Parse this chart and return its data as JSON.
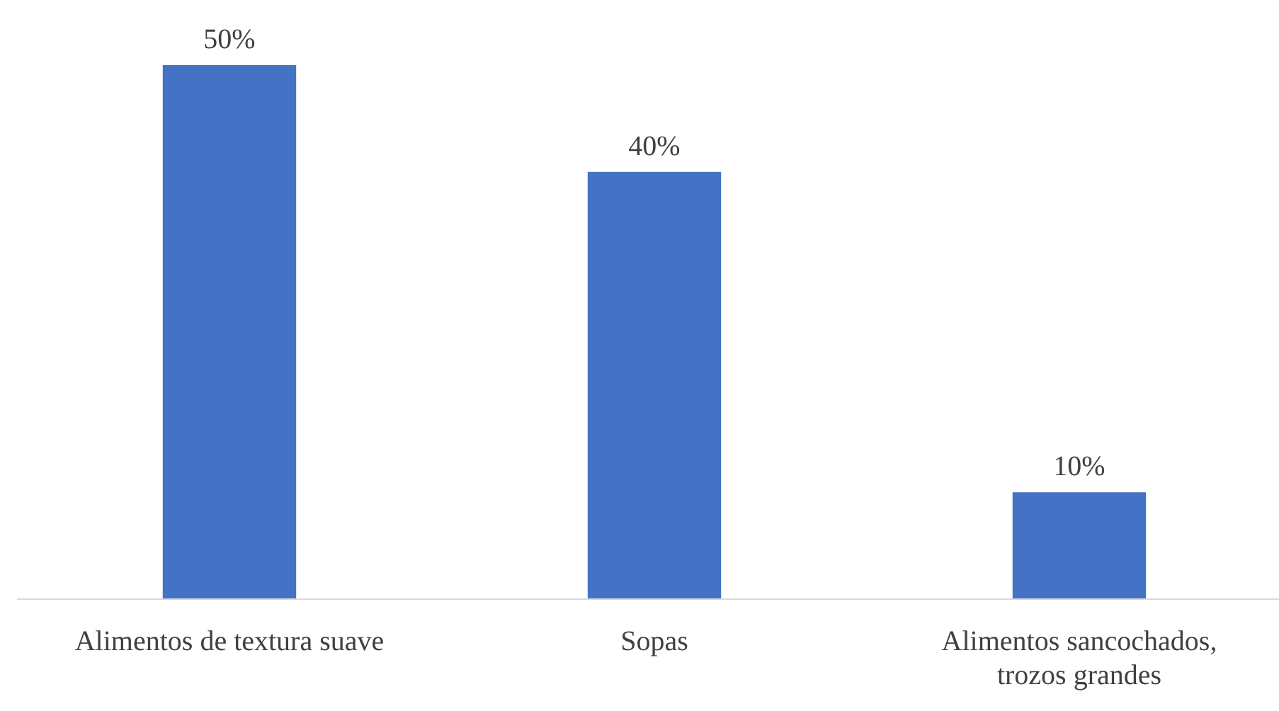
{
  "chart_data": {
    "type": "bar",
    "categories": [
      "Alimentos de textura suave",
      "Sopas",
      "Alimentos sancochados, trozos grandes"
    ],
    "values": [
      50,
      40,
      10
    ],
    "color": "#4472c4",
    "data_labels": true,
    "value_labels": [
      "50%",
      "40%",
      "10%"
    ]
  }
}
